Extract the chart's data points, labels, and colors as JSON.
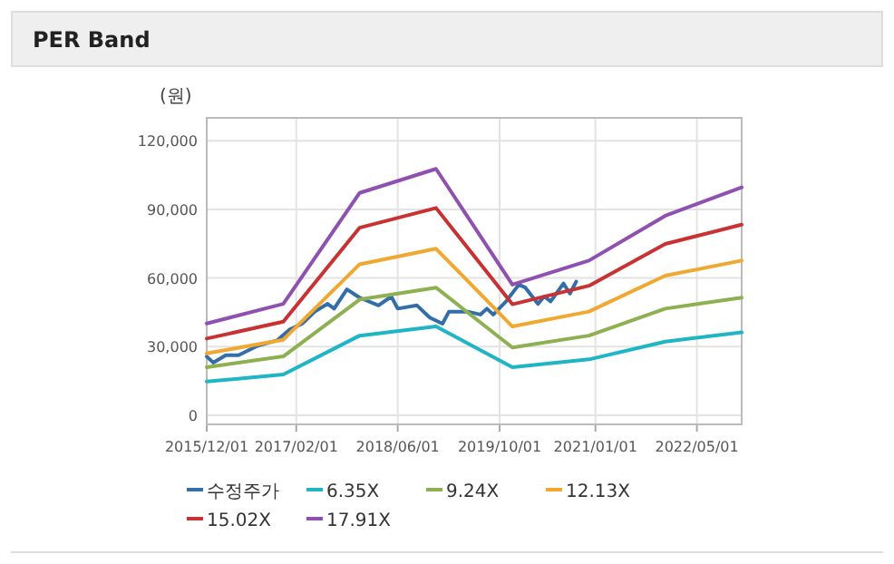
{
  "chart_data": {
    "type": "line",
    "title": "PER Band",
    "ylabel": "(원)",
    "xlim": [
      "2015-12-01",
      "2022-12-01"
    ],
    "xticks": [
      {
        "value": "2015-12-01",
        "label": "2015/12/01"
      },
      {
        "value": "2017-02-01",
        "label": "2017/02/01"
      },
      {
        "value": "2018-06-01",
        "label": "2018/06/01"
      },
      {
        "value": "2019-10-01",
        "label": "2019/10/01"
      },
      {
        "value": "2021-01-01",
        "label": "2021/01/01"
      },
      {
        "value": "2022-05-01",
        "label": "2022/05/01"
      }
    ],
    "ylim": [
      -4000,
      130000
    ],
    "yticks": [
      {
        "value": 0,
        "label": "0"
      },
      {
        "value": 30000,
        "label": "30,000"
      },
      {
        "value": 60000,
        "label": "60,000"
      },
      {
        "value": 90000,
        "label": "90,000"
      },
      {
        "value": 120000,
        "label": "120,000"
      }
    ],
    "grid": true,
    "legend": "bottom",
    "marker": "none",
    "line_style": "solid",
    "series": [
      {
        "name": "수정주가",
        "color": "#336ea8",
        "x": [
          "2015-12",
          "2016-01",
          "2016-03",
          "2016-05",
          "2016-08",
          "2016-11",
          "2017-01",
          "2017-03",
          "2017-05",
          "2017-07",
          "2017-08",
          "2017-10",
          "2017-12",
          "2018-03",
          "2018-05",
          "2018-06",
          "2018-09",
          "2018-11",
          "2019-01",
          "2019-02",
          "2019-05",
          "2019-07",
          "2019-08",
          "2019-09",
          "2019-11",
          "2020-01",
          "2020-02",
          "2020-04",
          "2020-05",
          "2020-06",
          "2020-08",
          "2020-09",
          "2020-10"
        ],
        "values": [
          25700,
          23000,
          26200,
          26200,
          30400,
          32700,
          37500,
          40000,
          45300,
          48700,
          46600,
          55000,
          51400,
          48000,
          51900,
          46600,
          48000,
          42700,
          40000,
          45300,
          45300,
          44000,
          46600,
          44000,
          49800,
          57100,
          55800,
          48700,
          51900,
          49800,
          57600,
          53200,
          58400
        ]
      },
      {
        "name": "6.35X",
        "color": "#1fb5c4",
        "x": [
          "2015-12",
          "2016-12",
          "2017-12",
          "2018-12",
          "2019-12",
          "2020-12",
          "2021-12",
          "2022-12"
        ],
        "values": [
          14700,
          17800,
          34800,
          38800,
          21000,
          24400,
          32200,
          36200
        ]
      },
      {
        "name": "9.24X",
        "color": "#8db050",
        "x": [
          "2015-12",
          "2016-12",
          "2017-12",
          "2018-12",
          "2019-12",
          "2020-12",
          "2021-12",
          "2022-12"
        ],
        "values": [
          21000,
          25700,
          50600,
          55800,
          29600,
          34800,
          46600,
          51400
        ]
      },
      {
        "name": "12.13X",
        "color": "#f0a830",
        "x": [
          "2015-12",
          "2016-12",
          "2017-12",
          "2018-12",
          "2019-12",
          "2020-12",
          "2021-12",
          "2022-12"
        ],
        "values": [
          27000,
          33000,
          66000,
          72800,
          38800,
          45300,
          61000,
          67600
        ]
      },
      {
        "name": "15.02X",
        "color": "#c83232",
        "x": [
          "2015-12",
          "2016-12",
          "2017-12",
          "2018-12",
          "2019-12",
          "2020-12",
          "2021-12",
          "2022-12"
        ],
        "values": [
          33500,
          40900,
          82000,
          90600,
          48500,
          56600,
          74900,
          83300
        ]
      },
      {
        "name": "17.91X",
        "color": "#9050b0",
        "x": [
          "2015-12",
          "2016-12",
          "2017-12",
          "2018-12",
          "2019-12",
          "2020-12",
          "2021-12",
          "2022-12"
        ],
        "values": [
          40100,
          48700,
          97200,
          107700,
          57100,
          67600,
          87200,
          99600
        ]
      }
    ]
  }
}
